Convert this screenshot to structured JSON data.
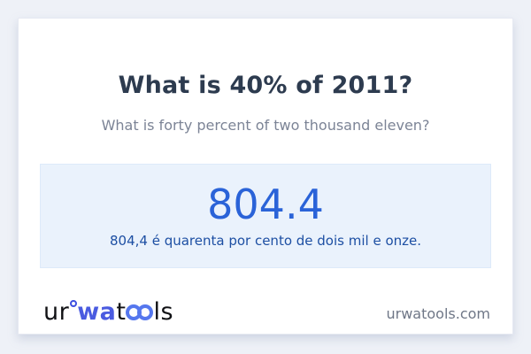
{
  "card": {
    "title": "What is 40% of 2011?",
    "subtitle": "What is forty percent of two thousand eleven?"
  },
  "answer": {
    "value": "804.4",
    "sentence": "804,4 é quarenta por cento de dois mil e onze."
  },
  "footer": {
    "logo": {
      "part1": "ur",
      "part2": "wa",
      "part3": "t",
      "part4": "ls"
    },
    "domain": "urwatools.com"
  },
  "colors": {
    "page_background": "#eef1f7",
    "card_background": "#ffffff",
    "title_text": "#2d3b4f",
    "subtitle_text": "#7c8496",
    "answer_box_background": "#eaf2fc",
    "answer_value_text": "#2a63d8",
    "answer_sentence_text": "#1d4fa3",
    "logo_blue": "#4a5be0",
    "domain_text": "#6f7787"
  }
}
